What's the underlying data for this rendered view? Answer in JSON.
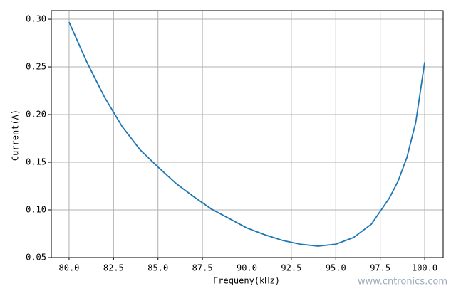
{
  "chart_data": {
    "type": "line",
    "xlabel": "Frequeny(kHz)",
    "ylabel": "Current(A)",
    "x": [
      80,
      81,
      82,
      83,
      84,
      85,
      86,
      87,
      88,
      89,
      90,
      91,
      92,
      93,
      94,
      95,
      96,
      97,
      98,
      98.5,
      99,
      99.5,
      100
    ],
    "values": [
      0.297,
      0.255,
      0.218,
      0.187,
      0.163,
      0.145,
      0.128,
      0.114,
      0.101,
      0.091,
      0.081,
      0.074,
      0.068,
      0.064,
      0.062,
      0.064,
      0.071,
      0.085,
      0.112,
      0.13,
      0.155,
      0.192,
      0.255
    ],
    "color": "#1f77b4",
    "xlim": [
      79,
      101.04
    ],
    "ylim": [
      0.05,
      0.309
    ],
    "xticks": [
      {
        "value": 80,
        "label": "80.0"
      },
      {
        "value": 82.5,
        "label": "82.5"
      },
      {
        "value": 85,
        "label": "85.0"
      },
      {
        "value": 87.5,
        "label": "87.5"
      },
      {
        "value": 90,
        "label": "90.0"
      },
      {
        "value": 92.5,
        "label": "92.5"
      },
      {
        "value": 95,
        "label": "95.0"
      },
      {
        "value": 97.5,
        "label": "97.5"
      },
      {
        "value": 100,
        "label": "100.0"
      }
    ],
    "yticks": [
      0.05,
      {
        "value": 0.1,
        "label": "0.10"
      },
      0.15,
      {
        "value": 0.2,
        "label": "0.20"
      },
      0.25,
      {
        "value": 0.3,
        "label": "0.30"
      }
    ],
    "grid": true,
    "watermark": "www.cntronics.com"
  }
}
